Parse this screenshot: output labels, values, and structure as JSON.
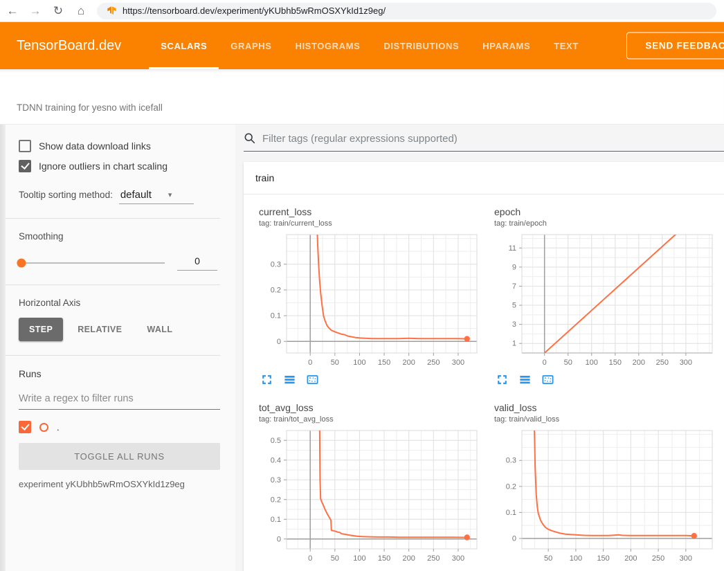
{
  "browser": {
    "url": "https://tensorboard.dev/experiment/yKUbhb5wRmOSXYkId1z9eg/",
    "icons": {
      "back": "←",
      "forward": "→",
      "reload": "↻",
      "home": "⌂",
      "dropdown_arrow": "▾"
    }
  },
  "header": {
    "brand": "TensorBoard.dev",
    "tabs": [
      {
        "label": "SCALARS",
        "active": true
      },
      {
        "label": "GRAPHS",
        "active": false
      },
      {
        "label": "HISTOGRAMS",
        "active": false
      },
      {
        "label": "DISTRIBUTIONS",
        "active": false
      },
      {
        "label": "HPARAMS",
        "active": false
      },
      {
        "label": "TEXT",
        "active": false
      }
    ],
    "feedback_button": "SEND FEEDBACK"
  },
  "subheader": {
    "experiment_title": "TDNN training for yesno with icefall"
  },
  "sidebar": {
    "checkboxes": [
      {
        "label": "Show data download links",
        "checked": false
      },
      {
        "label": "Ignore outliers in chart scaling",
        "checked": true
      }
    ],
    "tooltip_sorting": {
      "label": "Tooltip sorting method:",
      "value": "default"
    },
    "smoothing": {
      "label": "Smoothing",
      "value": "0"
    },
    "horizontal_axis": {
      "label": "Horizontal Axis",
      "options": [
        "STEP",
        "RELATIVE",
        "WALL"
      ],
      "selected": "STEP"
    },
    "runs": {
      "label": "Runs",
      "filter_placeholder": "Write a regex to filter runs",
      "run_name": ".",
      "toggle_button": "TOGGLE ALL RUNS",
      "experiment_caption": "experiment yKUbhb5wRmOSXYkId1z9eg"
    }
  },
  "main": {
    "filter_placeholder": "Filter tags (regular expressions supported)",
    "group_title": "train"
  },
  "colors": {
    "header_orange": "#fb8200",
    "accent_orange": "#fa6839",
    "run_color": "#ff7043",
    "icon_blue": "#2196f3",
    "grid_major": "#e2e2e2",
    "grid_minor": "#eeeeee",
    "zero_axis": "#9e9e9e"
  },
  "chart_data": [
    {
      "type": "line",
      "name": "current_loss",
      "tag": "tag: train/current_loss",
      "xlim": [
        -48,
        338
      ],
      "ylim": [
        -0.045,
        0.415
      ],
      "xticks": [
        0,
        50,
        100,
        150,
        200,
        250,
        300
      ],
      "yticks": [
        0,
        0.1,
        0.2,
        0.3
      ],
      "x_minor": 25,
      "y_minor": 0.05,
      "zero_x_axis": true,
      "zero_y_axis": true,
      "end_dot": true,
      "series": [
        [
          13,
          0.5
        ],
        [
          15,
          0.38
        ],
        [
          17,
          0.3
        ],
        [
          19,
          0.24
        ],
        [
          21,
          0.19
        ],
        [
          24,
          0.14
        ],
        [
          27,
          0.1
        ],
        [
          30,
          0.08
        ],
        [
          34,
          0.062
        ],
        [
          38,
          0.052
        ],
        [
          43,
          0.043
        ],
        [
          47,
          0.04
        ],
        [
          52,
          0.036
        ],
        [
          58,
          0.032
        ],
        [
          64,
          0.028
        ],
        [
          70,
          0.026
        ],
        [
          76,
          0.021
        ],
        [
          84,
          0.018
        ],
        [
          92,
          0.015
        ],
        [
          102,
          0.013
        ],
        [
          112,
          0.012
        ],
        [
          125,
          0.011
        ],
        [
          140,
          0.011
        ],
        [
          160,
          0.011
        ],
        [
          180,
          0.011
        ],
        [
          200,
          0.012
        ],
        [
          220,
          0.011
        ],
        [
          240,
          0.011
        ],
        [
          260,
          0.011
        ],
        [
          280,
          0.011
        ],
        [
          300,
          0.011
        ],
        [
          318,
          0.01
        ]
      ]
    },
    {
      "type": "line",
      "name": "epoch",
      "tag": "tag: train/epoch",
      "xlim": [
        -48,
        356
      ],
      "ylim": [
        0,
        12.4
      ],
      "xticks": [
        0,
        50,
        100,
        150,
        200,
        250,
        300
      ],
      "yticks": [
        1,
        3,
        5,
        7,
        9,
        11
      ],
      "x_minor": 25,
      "y_minor": 1,
      "zero_x_axis": true,
      "zero_y_axis": true,
      "end_dot": false,
      "series": [
        [
          0,
          0
        ],
        [
          280,
          12.5
        ]
      ]
    },
    {
      "type": "line",
      "name": "tot_avg_loss",
      "tag": "tag: train/tot_avg_loss",
      "xlim": [
        -48,
        338
      ],
      "ylim": [
        -0.05,
        0.55
      ],
      "xticks": [
        0,
        50,
        100,
        150,
        200,
        250,
        300
      ],
      "yticks": [
        0,
        0.1,
        0.2,
        0.3,
        0.4,
        0.5
      ],
      "x_minor": 25,
      "y_minor": 0.05,
      "zero_x_axis": true,
      "zero_y_axis": true,
      "end_dot": true,
      "series": [
        [
          19,
          0.62
        ],
        [
          20,
          0.3
        ],
        [
          21,
          0.205
        ],
        [
          23,
          0.19
        ],
        [
          26,
          0.175
        ],
        [
          30,
          0.15
        ],
        [
          34,
          0.13
        ],
        [
          38,
          0.112
        ],
        [
          41,
          0.1
        ],
        [
          42,
          0.095
        ],
        [
          43,
          0.044
        ],
        [
          46,
          0.042
        ],
        [
          50,
          0.04
        ],
        [
          56,
          0.035
        ],
        [
          60,
          0.033
        ],
        [
          64,
          0.026
        ],
        [
          70,
          0.024
        ],
        [
          78,
          0.02
        ],
        [
          86,
          0.017
        ],
        [
          95,
          0.014
        ],
        [
          105,
          0.012
        ],
        [
          120,
          0.011
        ],
        [
          140,
          0.01
        ],
        [
          160,
          0.01
        ],
        [
          180,
          0.009
        ],
        [
          200,
          0.009
        ],
        [
          230,
          0.009
        ],
        [
          260,
          0.009
        ],
        [
          290,
          0.009
        ],
        [
          318,
          0.008
        ]
      ]
    },
    {
      "type": "line",
      "name": "valid_loss",
      "tag": "tag: train/valid_loss",
      "xlim": [
        2,
        348
      ],
      "ylim": [
        -0.04,
        0.415
      ],
      "xticks": [
        50,
        100,
        150,
        200,
        250,
        300
      ],
      "yticks": [
        0,
        0.1,
        0.2,
        0.3
      ],
      "x_minor": 25,
      "y_minor": 0.05,
      "zero_x_axis": false,
      "zero_y_axis": true,
      "end_dot": true,
      "series": [
        [
          24,
          0.5
        ],
        [
          26,
          0.28
        ],
        [
          28,
          0.17
        ],
        [
          30,
          0.12
        ],
        [
          32,
          0.095
        ],
        [
          36,
          0.07
        ],
        [
          40,
          0.055
        ],
        [
          45,
          0.042
        ],
        [
          50,
          0.035
        ],
        [
          56,
          0.03
        ],
        [
          62,
          0.026
        ],
        [
          70,
          0.021
        ],
        [
          80,
          0.017
        ],
        [
          90,
          0.015
        ],
        [
          100,
          0.014
        ],
        [
          115,
          0.012
        ],
        [
          130,
          0.011
        ],
        [
          145,
          0.011
        ],
        [
          160,
          0.011
        ],
        [
          172,
          0.013
        ],
        [
          178,
          0.014
        ],
        [
          185,
          0.012
        ],
        [
          200,
          0.011
        ],
        [
          220,
          0.011
        ],
        [
          240,
          0.011
        ],
        [
          260,
          0.011
        ],
        [
          280,
          0.011
        ],
        [
          300,
          0.011
        ],
        [
          315,
          0.01
        ]
      ]
    }
  ]
}
